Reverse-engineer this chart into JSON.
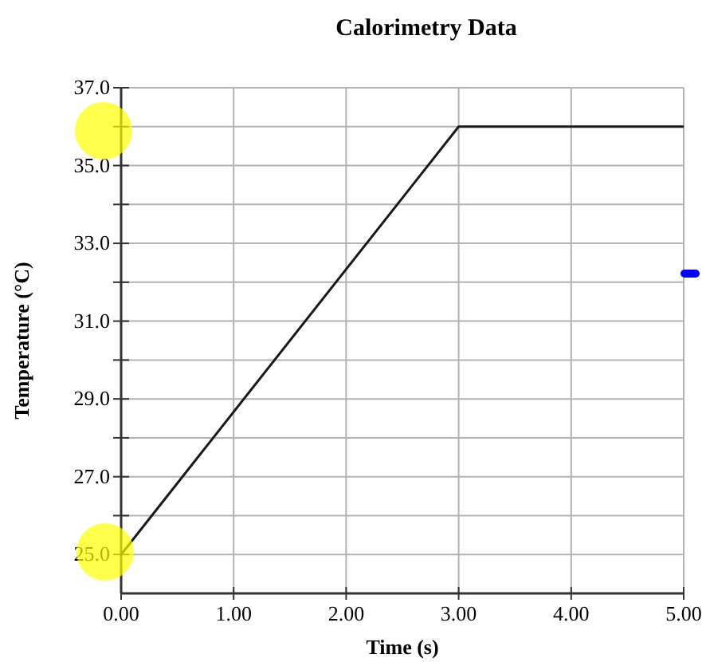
{
  "chart_data": {
    "type": "line",
    "title": "Calorimetry Data",
    "xlabel": "Time (s)",
    "ylabel": "Temperature (°C)",
    "x": [
      0,
      3,
      5
    ],
    "series": [
      {
        "color": "#1a1a1a",
        "values": [
          25,
          36,
          36
        ]
      }
    ],
    "xlim": [
      0,
      5
    ],
    "xticks": [
      {
        "value": 0,
        "label": "0.00"
      },
      {
        "value": 1,
        "label": "1.00"
      },
      {
        "value": 2,
        "label": "2.00"
      },
      {
        "value": 3,
        "label": "3.00"
      },
      {
        "value": 4,
        "label": "4.00"
      },
      {
        "value": 5,
        "label": "5.00"
      }
    ],
    "ylim": [
      24,
      37
    ],
    "yticks": [
      {
        "value": 25,
        "label": "25.0"
      },
      {
        "value": 26,
        "label": null
      },
      {
        "value": 27,
        "label": "27.0"
      },
      {
        "value": 28,
        "label": null
      },
      {
        "value": 29,
        "label": "29.0"
      },
      {
        "value": 30,
        "label": null
      },
      {
        "value": 31,
        "label": "31.0"
      },
      {
        "value": 32,
        "label": null
      },
      {
        "value": 33,
        "label": "33.0"
      },
      {
        "value": 34,
        "label": null
      },
      {
        "value": 35,
        "label": "35.0"
      },
      {
        "value": 36,
        "label": null
      },
      {
        "value": 37,
        "label": "37.0"
      }
    ],
    "grid": true,
    "marker": "none",
    "line_style": "solid"
  }
}
